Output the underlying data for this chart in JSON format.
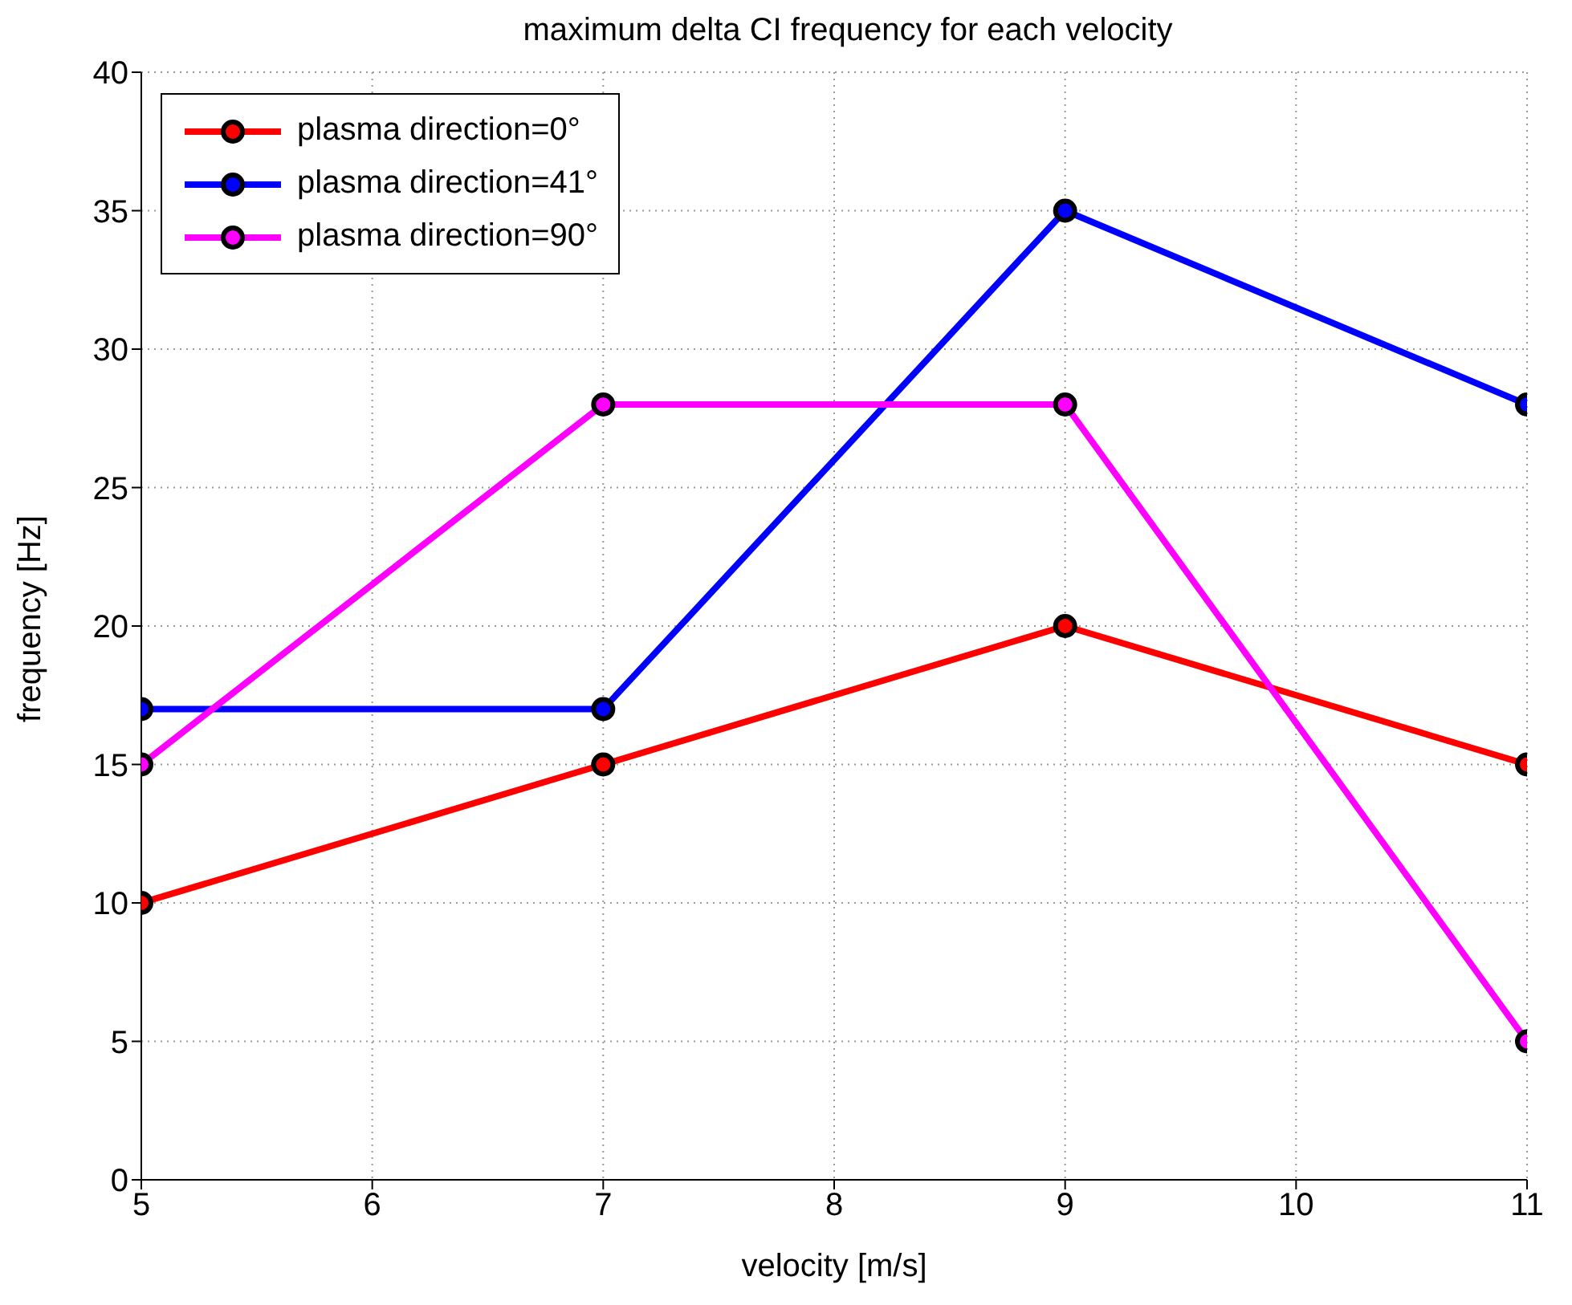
{
  "chart_data": {
    "type": "line",
    "title": "maximum delta CI frequency for each velocity",
    "xlabel": "velocity [m/s]",
    "ylabel": "frequency [Hz]",
    "x": [
      5,
      7,
      9,
      11
    ],
    "series": [
      {
        "name": "plasma direction=0°",
        "color": "#ff0000",
        "values": [
          10,
          15,
          20,
          15
        ]
      },
      {
        "name": "plasma direction=41°",
        "color": "#0000ff",
        "values": [
          17,
          17,
          35,
          28
        ]
      },
      {
        "name": "plasma direction=90°",
        "color": "#ff00ff",
        "values": [
          15,
          28,
          28,
          5
        ]
      }
    ],
    "xlim": [
      5,
      11
    ],
    "xticks": [
      5,
      6,
      7,
      8,
      9,
      10,
      11
    ],
    "ylim": [
      0,
      40
    ],
    "yticks": [
      0,
      5,
      10,
      15,
      20,
      25,
      30,
      35,
      40
    ],
    "grid": true,
    "legend": "top left",
    "marker": "circle",
    "line_style": "solid"
  }
}
